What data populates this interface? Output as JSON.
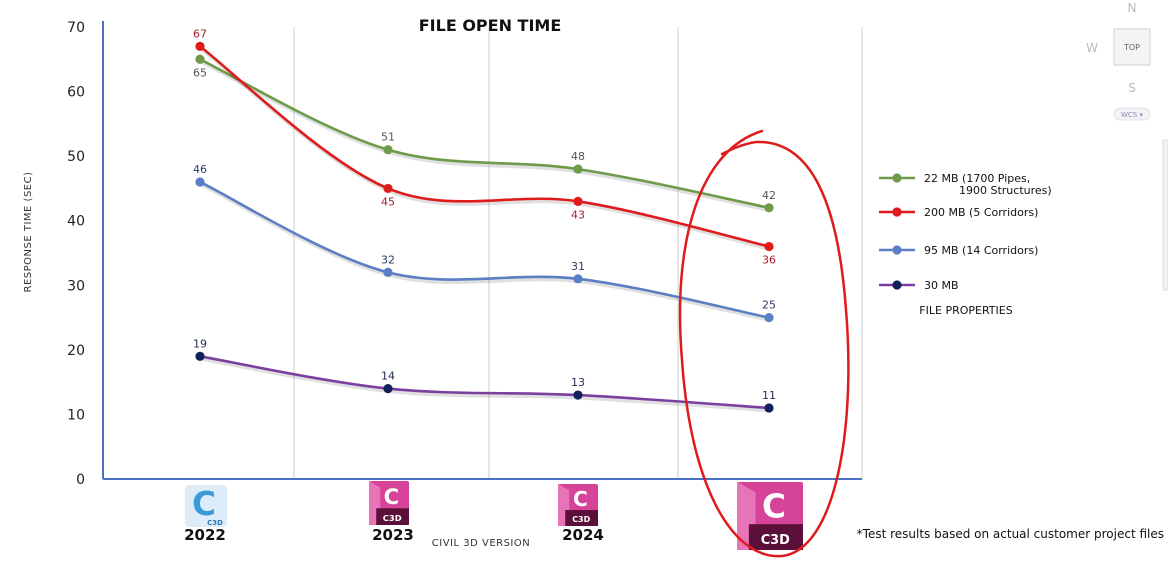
{
  "chart_data": {
    "type": "line",
    "title": "FILE OPEN TIME",
    "xlabel": "CIVIL 3D VERSION",
    "ylabel": "RESPONSE TIME  (SEC)",
    "ylim": [
      0,
      70
    ],
    "yticks": [
      0,
      10,
      20,
      30,
      40,
      50,
      60,
      70
    ],
    "categories": [
      "2022",
      "2023",
      "2024",
      ""
    ],
    "series": [
      {
        "name": "22 MB (1700 Pipes, 1900 Structures)",
        "name_lines": [
          "22 MB (1700 Pipes,",
          "1900 Structures)"
        ],
        "values": [
          65,
          51,
          48,
          42
        ],
        "color": "#6f9a4a",
        "label_color": "#555555",
        "label_pos": [
          "below",
          "above",
          "above",
          "above"
        ]
      },
      {
        "name": "200 MB (5 Corridors)",
        "name_lines": [
          "200 MB (5 Corridors)"
        ],
        "values": [
          67,
          45,
          43,
          36
        ],
        "color": "#e01b1b",
        "label_color": "#a8202a",
        "label_pos": [
          "above",
          "below",
          "below",
          "below"
        ]
      },
      {
        "name": "95 MB (14 Corridors)",
        "name_lines": [
          "95 MB (14 Corridors)"
        ],
        "values": [
          46,
          32,
          31,
          25
        ],
        "color": "#5a7fc4",
        "label_color": "#2b3b6a",
        "label_pos": [
          "above",
          "above",
          "above",
          "above"
        ]
      },
      {
        "name": "30 MB",
        "name_lines": [
          "30 MB"
        ],
        "values": [
          19,
          14,
          13,
          11
        ],
        "color": "#7b3fa0",
        "label_color": "#1f2a55",
        "label_pos": [
          "above",
          "above",
          "above",
          "above"
        ]
      }
    ],
    "legend_title": "FILE PROPERTIES",
    "legend_position": "right",
    "grid": "vertical",
    "highlight": {
      "category_index": 3,
      "shape": "red hand-drawn ellipse"
    }
  },
  "footnote": "*Test results based on actual customer project files",
  "logos": [
    {
      "letter": "C",
      "sub": "C3D",
      "style": "blue"
    },
    {
      "letter": "C",
      "sub": "C3D",
      "style": "magenta"
    },
    {
      "letter": "C",
      "sub": "C3D",
      "style": "magenta"
    },
    {
      "letter": "C",
      "sub": "C3D",
      "style": "magenta-large"
    }
  ],
  "viewcube": {
    "north": "N",
    "west": "W",
    "south": "S",
    "face": "TOP",
    "wcs": "WCS ▾"
  },
  "colors": {
    "axis": "#4a72c4",
    "grid": "#cccccc",
    "highlight": "#e01b1b",
    "magenta": "#b5197a",
    "blue_logo": "#3d9ad8"
  }
}
